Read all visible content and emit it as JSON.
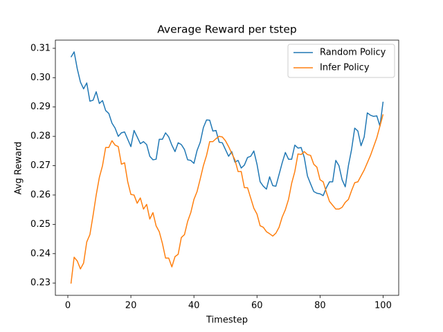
{
  "chart_data": {
    "type": "line",
    "title": "Average Reward per tstep",
    "x_label": "Timestep",
    "y_label": "Avg Reward",
    "x": [
      1,
      2,
      3,
      4,
      5,
      6,
      7,
      8,
      9,
      10,
      11,
      12,
      13,
      14,
      15,
      16,
      17,
      18,
      19,
      20,
      21,
      22,
      23,
      24,
      25,
      26,
      27,
      28,
      29,
      30,
      31,
      32,
      33,
      34,
      35,
      36,
      37,
      38,
      39,
      40,
      41,
      42,
      43,
      44,
      45,
      46,
      47,
      48,
      49,
      50,
      51,
      52,
      53,
      54,
      55,
      56,
      57,
      58,
      59,
      60,
      61,
      62,
      63,
      64,
      65,
      66,
      67,
      68,
      69,
      70,
      71,
      72,
      73,
      74,
      75,
      76,
      77,
      78,
      79,
      80,
      81,
      82,
      83,
      84,
      85,
      86,
      87,
      88,
      89,
      90,
      91,
      92,
      93,
      94,
      95,
      96,
      97,
      98,
      99,
      100
    ],
    "series": [
      {
        "name": "Random Policy",
        "color": "#1f77b4",
        "values": [
          0.307,
          0.3088,
          0.303,
          0.2985,
          0.2962,
          0.2982,
          0.292,
          0.2923,
          0.2952,
          0.2912,
          0.2922,
          0.2888,
          0.2878,
          0.2845,
          0.2828,
          0.28,
          0.2812,
          0.2815,
          0.279,
          0.2765,
          0.282,
          0.2798,
          0.2775,
          0.2782,
          0.2772,
          0.2732,
          0.272,
          0.2722,
          0.279,
          0.279,
          0.2812,
          0.2798,
          0.277,
          0.2748,
          0.2778,
          0.2772,
          0.2755,
          0.272,
          0.2718,
          0.2708,
          0.2752,
          0.278,
          0.283,
          0.2856,
          0.2855,
          0.2818,
          0.282,
          0.278,
          0.2778,
          0.2755,
          0.2732,
          0.2748,
          0.2712,
          0.2718,
          0.2692,
          0.2702,
          0.2728,
          0.2732,
          0.275,
          0.2705,
          0.2645,
          0.263,
          0.262,
          0.2662,
          0.2632,
          0.263,
          0.267,
          0.271,
          0.2745,
          0.2722,
          0.2722,
          0.277,
          0.276,
          0.2762,
          0.2728,
          0.2665,
          0.2638,
          0.2612,
          0.2606,
          0.2604,
          0.2598,
          0.2625,
          0.2645,
          0.2645,
          0.2718,
          0.27,
          0.2652,
          0.2628,
          0.27,
          0.2755,
          0.2828,
          0.2818,
          0.2768,
          0.2798,
          0.288,
          0.2872,
          0.2868,
          0.287,
          0.2835,
          0.2918
        ]
      },
      {
        "name": "Infer Policy",
        "color": "#ff7f0e",
        "values": [
          0.2298,
          0.2388,
          0.2375,
          0.2348,
          0.2368,
          0.244,
          0.2465,
          0.253,
          0.26,
          0.266,
          0.27,
          0.2762,
          0.2762,
          0.2785,
          0.277,
          0.2765,
          0.2705,
          0.271,
          0.2645,
          0.2602,
          0.26,
          0.2572,
          0.259,
          0.2552,
          0.2568,
          0.2518,
          0.254,
          0.2495,
          0.2475,
          0.2435,
          0.2385,
          0.2385,
          0.2355,
          0.239,
          0.2398,
          0.2455,
          0.2465,
          0.251,
          0.254,
          0.2585,
          0.2612,
          0.2655,
          0.27,
          0.2735,
          0.2782,
          0.2782,
          0.2792,
          0.28,
          0.2798,
          0.2785,
          0.2765,
          0.2742,
          0.272,
          0.268,
          0.268,
          0.2625,
          0.2625,
          0.259,
          0.2555,
          0.2535,
          0.2495,
          0.249,
          0.2475,
          0.2468,
          0.246,
          0.247,
          0.249,
          0.2525,
          0.255,
          0.2585,
          0.264,
          0.268,
          0.274,
          0.2738,
          0.2748,
          0.2738,
          0.2735,
          0.2705,
          0.2695,
          0.2652,
          0.2645,
          0.261,
          0.2578,
          0.2565,
          0.2552,
          0.2552,
          0.2558,
          0.2575,
          0.2585,
          0.2615,
          0.2642,
          0.2645,
          0.2665,
          0.2685,
          0.271,
          0.2735,
          0.2765,
          0.2795,
          0.2835,
          0.2875
        ]
      }
    ],
    "xlim": [
      -3.95,
      104.95
    ],
    "xticks": [
      0,
      20,
      40,
      60,
      80,
      100
    ],
    "ylim": [
      0.2258,
      0.3128
    ],
    "yticks": [
      0.23,
      0.24,
      0.25,
      0.26,
      0.27,
      0.28,
      0.29,
      {
        "value": 0.3,
        "label": "0.30"
      },
      0.31
    ],
    "legend": "upper right",
    "grid": false
  }
}
